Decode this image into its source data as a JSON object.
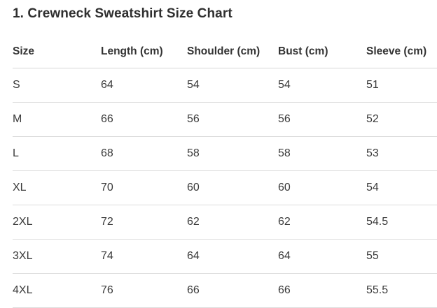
{
  "page": {
    "title": "1. Crewneck Sweatshirt Size Chart"
  },
  "size_chart": {
    "columns": [
      "Size",
      "Length (cm)",
      "Shoulder (cm)",
      "Bust (cm)",
      "Sleeve (cm)"
    ],
    "rows": [
      {
        "size": "S",
        "length_cm": "64",
        "shoulder_cm": "54",
        "bust_cm": "54",
        "sleeve_cm": "51"
      },
      {
        "size": "M",
        "length_cm": "66",
        "shoulder_cm": "56",
        "bust_cm": "56",
        "sleeve_cm": "52"
      },
      {
        "size": "L",
        "length_cm": "68",
        "shoulder_cm": "58",
        "bust_cm": "58",
        "sleeve_cm": "53"
      },
      {
        "size": "XL",
        "length_cm": "70",
        "shoulder_cm": "60",
        "bust_cm": "60",
        "sleeve_cm": "54"
      },
      {
        "size": "2XL",
        "length_cm": "72",
        "shoulder_cm": "62",
        "bust_cm": "62",
        "sleeve_cm": "54.5"
      },
      {
        "size": "3XL",
        "length_cm": "74",
        "shoulder_cm": "64",
        "bust_cm": "64",
        "sleeve_cm": "55"
      },
      {
        "size": "4XL",
        "length_cm": "76",
        "shoulder_cm": "66",
        "bust_cm": "66",
        "sleeve_cm": "55.5"
      }
    ]
  },
  "colors": {
    "background": "#ffffff",
    "title_text": "#2f2f2f",
    "header_text": "#333333",
    "body_text": "#3a3a3a",
    "divider": "#dcdcdc"
  }
}
